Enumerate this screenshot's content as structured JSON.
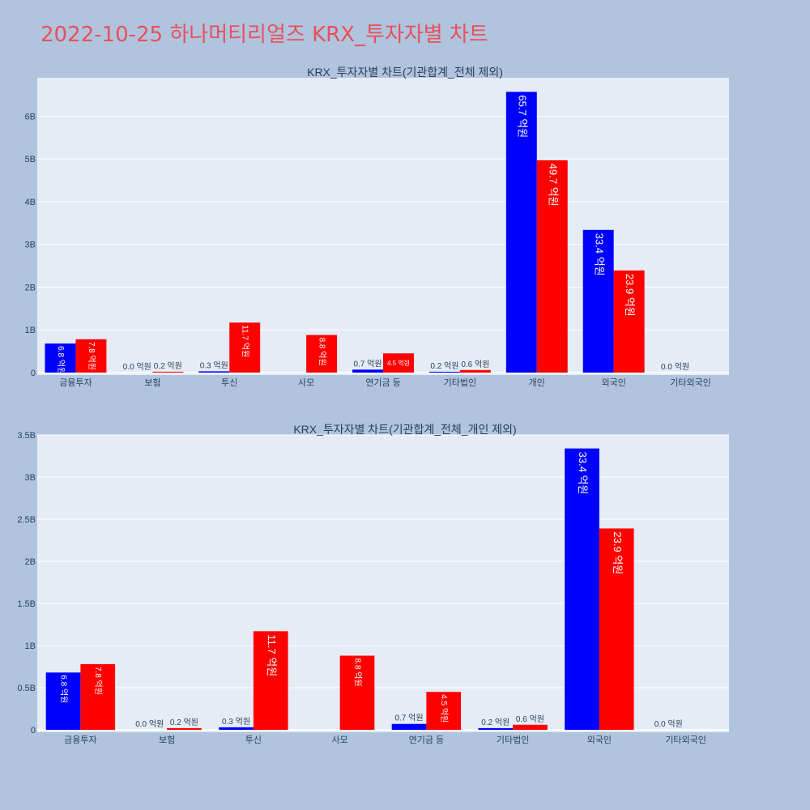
{
  "page_title": "2022-10-25 하나머티리얼즈 KRX_투자자별 차트",
  "colors": {
    "series_a": "#0000ff",
    "series_b": "#ff0000",
    "plot_bg": "#e5ecf6",
    "paper_bg": "#b0c4de",
    "title": "#e8505b"
  },
  "chart_data": [
    {
      "type": "bar",
      "title": "KRX_투자자별 차트(기관합계_전체 제외)",
      "categories": [
        "금융투자",
        "보험",
        "투신",
        "사모",
        "연기금 등",
        "기타법인",
        "개인",
        "외국인",
        "기타외국인"
      ],
      "series": [
        {
          "values": [
            680000000,
            0,
            30000000,
            null,
            70000000,
            20000000,
            6570000000,
            3340000000,
            0
          ],
          "labels": [
            "6.8 억원",
            "0.0 억원",
            "0.3 억원",
            "",
            "0.7 억원",
            "0.2 억원",
            "65.7 억원",
            "33.4 억원",
            "0.0 억원"
          ]
        },
        {
          "values": [
            780000000,
            20000000,
            1170000000,
            880000000,
            450000000,
            60000000,
            4970000000,
            2390000000,
            null
          ],
          "labels": [
            "7.8 억원",
            "0.2 억원",
            "11.7 억원",
            "8.8 억원",
            "4.5 억원",
            "0.6 억원",
            "49.7 억원",
            "23.9 억원",
            ""
          ]
        }
      ],
      "ylim": [
        0,
        6900000000
      ],
      "yticks": [
        0,
        1000000000,
        2000000000,
        3000000000,
        4000000000,
        5000000000,
        6000000000
      ],
      "ytick_labels": [
        "0",
        "1B",
        "2B",
        "3B",
        "4B",
        "5B",
        "6B"
      ],
      "grid": true,
      "legend": "none"
    },
    {
      "type": "bar",
      "title": "KRX_투자자별 차트(기관합계_전체_개인 제외)",
      "categories": [
        "금융투자",
        "보험",
        "투신",
        "사모",
        "연기금 등",
        "기타법인",
        "외국인",
        "기타외국인"
      ],
      "series": [
        {
          "values": [
            680000000,
            0,
            30000000,
            null,
            70000000,
            20000000,
            3340000000,
            0
          ],
          "labels": [
            "6.8 억원",
            "0.0 억원",
            "0.3 억원",
            "",
            "0.7 억원",
            "0.2 억원",
            "33.4 억원",
            "0.0 억원"
          ]
        },
        {
          "values": [
            780000000,
            20000000,
            1170000000,
            880000000,
            450000000,
            60000000,
            2390000000,
            null
          ],
          "labels": [
            "7.8 억원",
            "0.2 억원",
            "11.7 억원",
            "8.8 억원",
            "4.5 억원",
            "0.6 억원",
            "23.9 억원",
            ""
          ]
        }
      ],
      "ylim": [
        0,
        3500000000
      ],
      "yticks": [
        0,
        500000000,
        1000000000,
        1500000000,
        2000000000,
        2500000000,
        3000000000,
        3500000000
      ],
      "ytick_labels": [
        "0",
        "0.5B",
        "1B",
        "1.5B",
        "2B",
        "2.5B",
        "3B",
        "3.5B"
      ],
      "grid": true,
      "legend": "none"
    }
  ]
}
